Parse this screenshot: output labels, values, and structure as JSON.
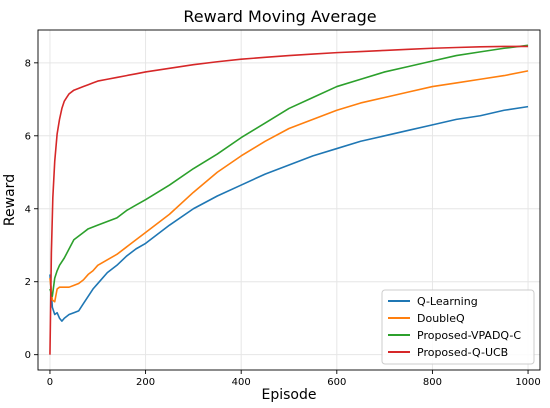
{
  "chart_data": {
    "type": "line",
    "title": "Reward Moving Average",
    "xlabel": "Episode",
    "ylabel": "Reward",
    "xlim": [
      -25,
      1025
    ],
    "ylim": [
      -0.42,
      8.9
    ],
    "xticks": [
      0,
      200,
      400,
      600,
      800,
      1000
    ],
    "yticks": [
      0,
      2,
      4,
      6,
      8
    ],
    "grid": true,
    "legend_position": "lower-right",
    "series": [
      {
        "name": "Q-Learning",
        "color": "#1f77b4",
        "x": [
          0,
          5,
          10,
          15,
          20,
          25,
          30,
          40,
          50,
          60,
          70,
          80,
          90,
          100,
          120,
          140,
          160,
          180,
          200,
          250,
          300,
          350,
          400,
          450,
          500,
          550,
          600,
          650,
          700,
          750,
          800,
          850,
          900,
          950,
          1000
        ],
        "y": [
          2.2,
          1.3,
          1.1,
          1.15,
          1.0,
          0.92,
          1.0,
          1.1,
          1.15,
          1.2,
          1.4,
          1.6,
          1.8,
          1.95,
          2.25,
          2.45,
          2.7,
          2.9,
          3.05,
          3.55,
          4.0,
          4.35,
          4.65,
          4.95,
          5.2,
          5.45,
          5.65,
          5.85,
          6.0,
          6.15,
          6.3,
          6.45,
          6.55,
          6.7,
          6.8
        ]
      },
      {
        "name": "DoubleQ",
        "color": "#ff7f0e",
        "x": [
          0,
          5,
          10,
          15,
          20,
          30,
          40,
          50,
          60,
          70,
          80,
          90,
          100,
          120,
          140,
          160,
          180,
          200,
          250,
          300,
          350,
          400,
          450,
          500,
          550,
          600,
          650,
          700,
          750,
          800,
          850,
          900,
          950,
          1000
        ],
        "y": [
          2.1,
          1.5,
          1.45,
          1.8,
          1.85,
          1.85,
          1.85,
          1.9,
          1.95,
          2.05,
          2.2,
          2.3,
          2.45,
          2.6,
          2.75,
          2.95,
          3.15,
          3.35,
          3.85,
          4.45,
          5.0,
          5.45,
          5.85,
          6.2,
          6.45,
          6.7,
          6.9,
          7.05,
          7.2,
          7.35,
          7.45,
          7.55,
          7.65,
          7.78
        ]
      },
      {
        "name": "Proposed-VPADQ-C",
        "color": "#2ca02c",
        "x": [
          0,
          5,
          10,
          15,
          20,
          30,
          40,
          50,
          60,
          70,
          80,
          90,
          100,
          120,
          140,
          160,
          180,
          200,
          250,
          300,
          350,
          400,
          450,
          500,
          550,
          600,
          650,
          700,
          750,
          800,
          850,
          900,
          950,
          1000
        ],
        "y": [
          1.8,
          1.6,
          2.1,
          2.3,
          2.45,
          2.65,
          2.9,
          3.15,
          3.25,
          3.35,
          3.45,
          3.5,
          3.55,
          3.65,
          3.75,
          3.95,
          4.1,
          4.25,
          4.65,
          5.1,
          5.5,
          5.95,
          6.35,
          6.75,
          7.05,
          7.35,
          7.55,
          7.75,
          7.9,
          8.05,
          8.2,
          8.3,
          8.4,
          8.48
        ]
      },
      {
        "name": "Proposed-Q-UCB",
        "color": "#d62728",
        "x": [
          0,
          3,
          6,
          10,
          15,
          20,
          25,
          30,
          35,
          40,
          50,
          60,
          70,
          80,
          90,
          100,
          120,
          140,
          160,
          180,
          200,
          250,
          300,
          350,
          400,
          450,
          500,
          550,
          600,
          650,
          700,
          750,
          800,
          850,
          900,
          950,
          1000
        ],
        "y": [
          0.0,
          2.8,
          4.3,
          5.3,
          6.05,
          6.45,
          6.75,
          6.95,
          7.05,
          7.15,
          7.25,
          7.3,
          7.35,
          7.4,
          7.45,
          7.5,
          7.55,
          7.6,
          7.65,
          7.7,
          7.75,
          7.85,
          7.95,
          8.03,
          8.1,
          8.15,
          8.2,
          8.24,
          8.28,
          8.31,
          8.34,
          8.37,
          8.4,
          8.42,
          8.44,
          8.45,
          8.45
        ]
      }
    ]
  }
}
